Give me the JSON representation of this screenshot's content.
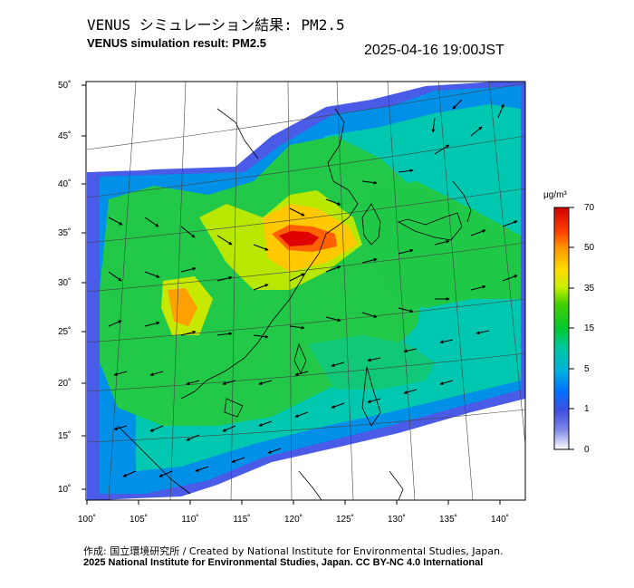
{
  "header": {
    "title_jp": "VENUS シミュレーション結果: PM2.5",
    "title_en": "VENUS simulation result: PM2.5",
    "timestamp": "2025-04-16 19:00JST"
  },
  "map": {
    "lon_ticks": [
      "100˚",
      "105˚",
      "110˚",
      "115˚",
      "120˚",
      "125˚",
      "130˚",
      "135˚",
      "140˚"
    ],
    "lat_ticks": [
      "50˚",
      "45˚",
      "40˚",
      "35˚",
      "30˚",
      "25˚",
      "20˚",
      "15˚",
      "10˚"
    ],
    "lon_range": [
      100,
      141
    ],
    "lat_range": [
      9,
      51
    ]
  },
  "colorbar": {
    "unit": "μg/m³",
    "labels": [
      "70",
      "50",
      "35",
      "15",
      "5",
      "1",
      "0"
    ],
    "colors": [
      "#d00000",
      "#ff4000",
      "#ff9900",
      "#ffdd00",
      "#c8f000",
      "#44d000",
      "#00c830",
      "#00c8a0",
      "#00b0e0",
      "#0070ff",
      "#4050e0",
      "#8088e8",
      "#ffffff"
    ]
  },
  "footer": {
    "credit_line": "作成: 国立環境研究所 / Created by National Institute for Environmental Studies, Japan.",
    "copyright_line": "2025 National Institute for Environmental Studies, Japan. CC BY-NC 4.0 International"
  }
}
